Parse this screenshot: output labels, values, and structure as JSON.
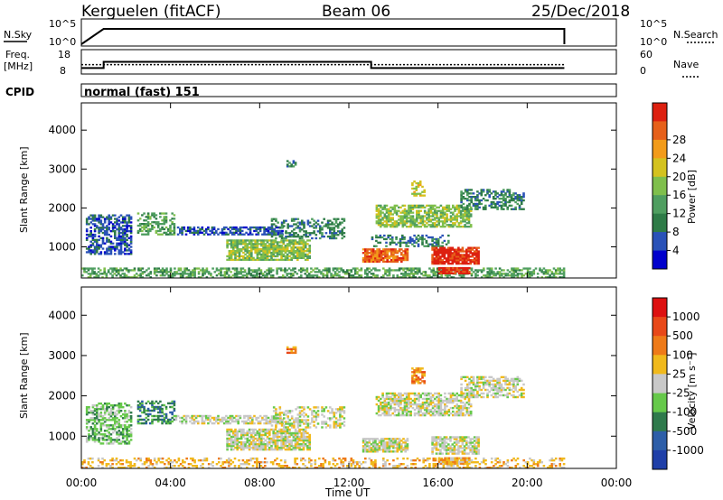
{
  "header": {
    "station": "Kerguelen (fitACF)",
    "beam": "Beam 06",
    "date": "25/Dec/2018"
  },
  "sky_panel": {
    "left_label": "N.Sky",
    "right_label": "N.Search",
    "left_ticks": [
      "10^5",
      "10^0"
    ],
    "right_ticks": [
      "10^5",
      "10^0"
    ]
  },
  "freq_panel": {
    "left_label_1": "Freq.",
    "left_label_2": "[MHz]",
    "right_label": "Nave",
    "left_ticks": [
      "18",
      "8"
    ],
    "right_ticks": [
      "60",
      "0"
    ]
  },
  "cpid": {
    "label": "CPID",
    "value": "normal (fast) 151"
  },
  "colors": {
    "power": [
      "#0000cc",
      "#2a52b8",
      "#2e7b47",
      "#4f9e60",
      "#7fbf4c",
      "#d4c21f",
      "#f29b1a",
      "#e6601a",
      "#dd2010"
    ],
    "velocity": [
      "#1f3fa8",
      "#2d5ea8",
      "#2f7a4c",
      "#66c94a",
      "#c8c8c8",
      "#f0b91c",
      "#ee7a18",
      "#e84818",
      "#dd1010"
    ]
  },
  "chart_data": [
    {
      "type": "line",
      "name": "N.Sky / N.Search",
      "x": [
        "00:00",
        "01:00",
        "21:40",
        "21:40"
      ],
      "y": [
        1,
        100000,
        100000,
        1
      ],
      "yscale": "log",
      "xlim": [
        "00:00",
        "24:00"
      ]
    },
    {
      "type": "line",
      "name": "Frequency / Nave",
      "series": [
        {
          "name": "Freq.",
          "x": [
            "00:00",
            "01:00",
            "01:00",
            "13:00",
            "13:00",
            "21:40"
          ],
          "y": [
            10,
            10,
            13,
            13,
            10,
            10
          ]
        },
        {
          "name": "Nave",
          "x": [
            "00:00",
            "21:40"
          ],
          "y": [
            22,
            22
          ]
        }
      ],
      "ylim": [
        8,
        18
      ],
      "y2lim": [
        0,
        60
      ]
    },
    {
      "type": "heatmap",
      "title": "Power",
      "xlabel": "",
      "ylabel": "Slant Range [km]",
      "colorbar_label": "Power [dB]",
      "colorbar_ticks": [
        "4",
        "8",
        "12",
        "16",
        "20",
        "24",
        "28"
      ],
      "xlim": [
        "00:00",
        "24:00"
      ],
      "x_ticks": [
        "00:00",
        "04:00",
        "08:00",
        "12:00",
        "16:00",
        "20:00",
        "00:00"
      ],
      "ylim": [
        200,
        4700
      ],
      "y_ticks": [
        1000,
        2000,
        3000,
        4000
      ],
      "regions": [
        {
          "t0": 0.0,
          "t1": 21.6,
          "r0": 200,
          "r1": 430,
          "level": 3,
          "density": 0.55
        },
        {
          "t0": 0.2,
          "t1": 2.2,
          "r0": 800,
          "r1": 1800,
          "level": 1,
          "density": 0.6
        },
        {
          "t0": 2.5,
          "t1": 4.2,
          "r0": 1300,
          "r1": 1850,
          "level": 3,
          "density": 0.5
        },
        {
          "t0": 4.2,
          "t1": 9.0,
          "r0": 1300,
          "r1": 1500,
          "level": 1,
          "density": 0.6
        },
        {
          "t0": 6.5,
          "t1": 10.2,
          "r0": 650,
          "r1": 1150,
          "level": 4,
          "density": 0.8
        },
        {
          "t0": 8.5,
          "t1": 11.8,
          "r0": 1200,
          "r1": 1700,
          "level": 2,
          "density": 0.45
        },
        {
          "t0": 12.6,
          "t1": 14.6,
          "r0": 600,
          "r1": 950,
          "level": 7,
          "density": 0.85
        },
        {
          "t0": 13.0,
          "t1": 16.5,
          "r0": 1000,
          "r1": 1300,
          "level": 2,
          "density": 0.4
        },
        {
          "t0": 13.2,
          "t1": 17.5,
          "r0": 1500,
          "r1": 2050,
          "level": 4,
          "density": 0.65
        },
        {
          "t0": 17.0,
          "t1": 19.8,
          "r0": 1950,
          "r1": 2450,
          "level": 2,
          "density": 0.55
        },
        {
          "t0": 14.8,
          "t1": 15.4,
          "r0": 2300,
          "r1": 2700,
          "level": 5,
          "density": 0.5
        },
        {
          "t0": 15.7,
          "t1": 17.8,
          "r0": 550,
          "r1": 1000,
          "level": 8,
          "density": 0.85
        },
        {
          "t0": 16.0,
          "t1": 17.4,
          "r0": 300,
          "r1": 480,
          "level": 8,
          "density": 0.9
        },
        {
          "t0": 9.2,
          "t1": 9.6,
          "r0": 3050,
          "r1": 3200,
          "level": 2,
          "density": 0.5
        }
      ]
    },
    {
      "type": "heatmap",
      "title": "Velocity",
      "xlabel": "Time UT",
      "ylabel": "Slant Range [km]",
      "colorbar_label": "Velocity [m s⁻¹]",
      "colorbar_ticks": [
        "-1000",
        "-500",
        "-100",
        "-25",
        "25",
        "100",
        "500",
        "1000"
      ],
      "xlim": [
        "00:00",
        "24:00"
      ],
      "x_ticks": [
        "00:00",
        "04:00",
        "08:00",
        "12:00",
        "16:00",
        "20:00",
        "00:00"
      ],
      "ylim": [
        200,
        4700
      ],
      "y_ticks": [
        1000,
        2000,
        3000,
        4000
      ],
      "regions": [
        {
          "t0": 0.0,
          "t1": 21.6,
          "r0": 200,
          "r1": 430,
          "level": 5,
          "density": 0.35
        },
        {
          "t0": 0.2,
          "t1": 2.2,
          "r0": 800,
          "r1": 1800,
          "level": 3,
          "density": 0.55
        },
        {
          "t0": 2.5,
          "t1": 4.2,
          "r0": 1300,
          "r1": 1850,
          "level": 2,
          "density": 0.5
        },
        {
          "t0": 4.2,
          "t1": 9.0,
          "r0": 1300,
          "r1": 1500,
          "level": 4,
          "density": 0.6
        },
        {
          "t0": 6.5,
          "t1": 10.2,
          "r0": 650,
          "r1": 1150,
          "level": 4,
          "density": 0.8
        },
        {
          "t0": 8.5,
          "t1": 11.8,
          "r0": 1200,
          "r1": 1700,
          "level": 4,
          "density": 0.45
        },
        {
          "t0": 12.6,
          "t1": 14.6,
          "r0": 600,
          "r1": 950,
          "level": 4,
          "density": 0.85
        },
        {
          "t0": 13.2,
          "t1": 17.5,
          "r0": 1500,
          "r1": 2050,
          "level": 4,
          "density": 0.65
        },
        {
          "t0": 17.0,
          "t1": 19.8,
          "r0": 1950,
          "r1": 2450,
          "level": 4,
          "density": 0.55
        },
        {
          "t0": 14.8,
          "t1": 15.4,
          "r0": 2300,
          "r1": 2700,
          "level": 6,
          "density": 0.6
        },
        {
          "t0": 15.7,
          "t1": 17.8,
          "r0": 550,
          "r1": 1000,
          "level": 4,
          "density": 0.7
        },
        {
          "t0": 16.0,
          "t1": 17.4,
          "r0": 300,
          "r1": 480,
          "level": 5,
          "density": 0.9
        },
        {
          "t0": 9.2,
          "t1": 9.6,
          "r0": 3050,
          "r1": 3200,
          "level": 6,
          "density": 0.5
        }
      ]
    }
  ]
}
